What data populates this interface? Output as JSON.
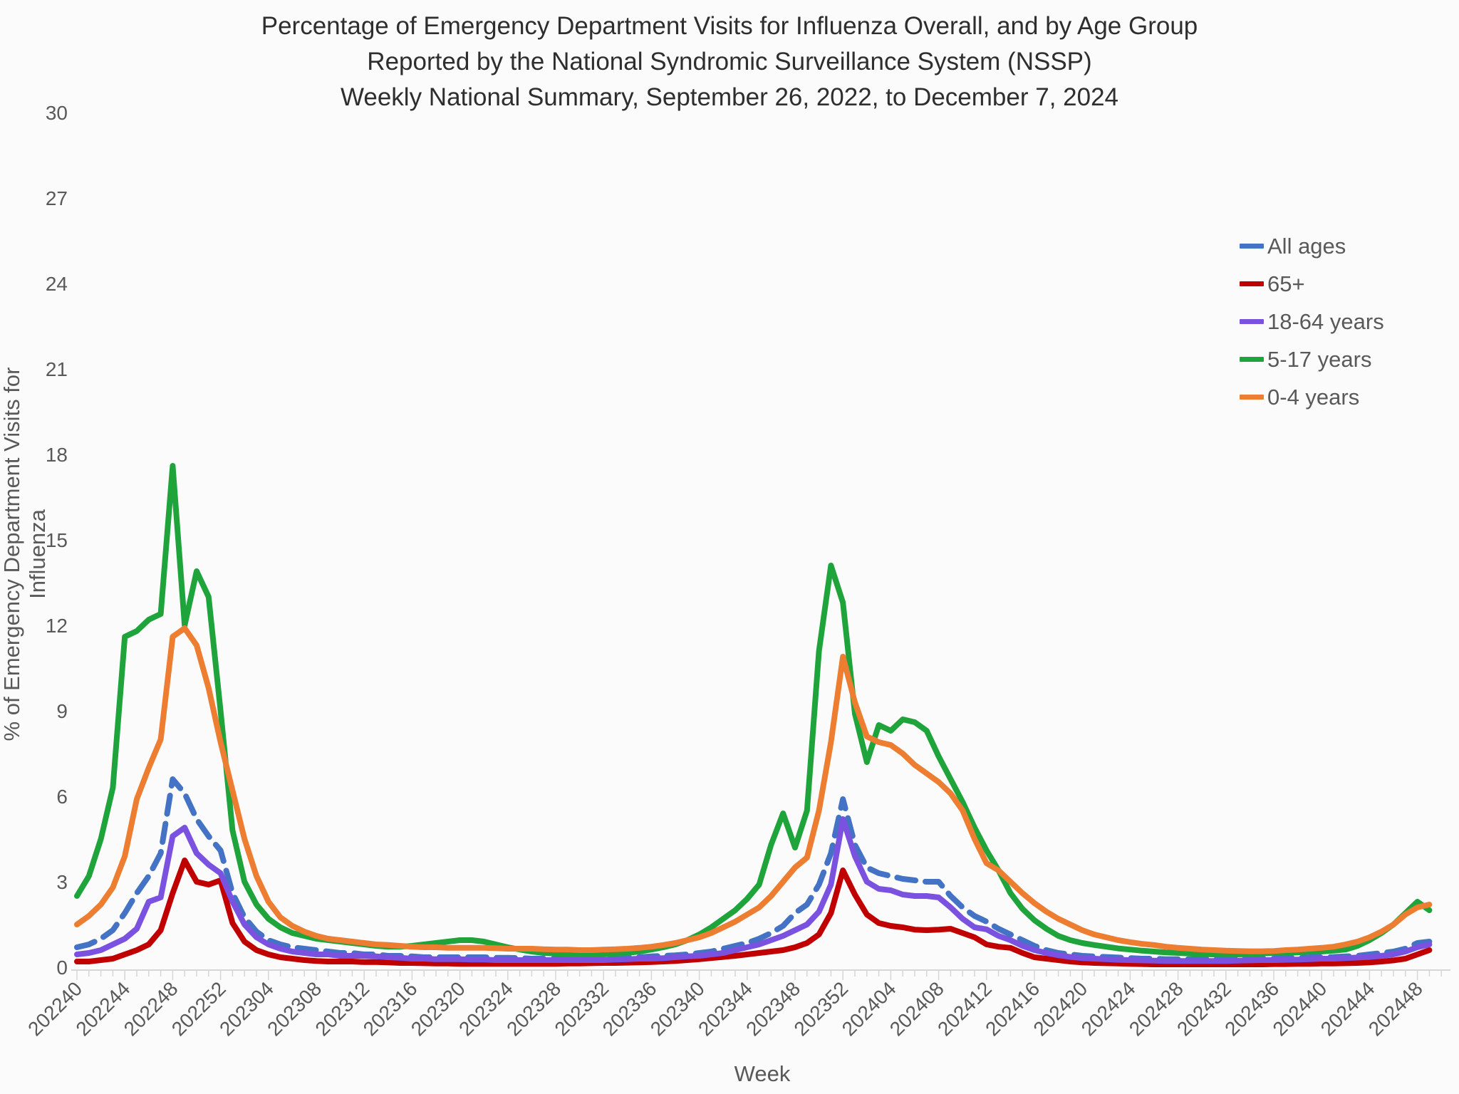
{
  "title": {
    "line1": "Percentage of Emergency Department Visits for Influenza Overall, and by Age Group",
    "line2": "Reported by the National Syndromic Surveillance System (NSSP)",
    "line3": "Weekly National Summary, September 26, 2022, to December 7, 2024"
  },
  "y_axis": {
    "label": "% of Emergency Department Visits for Influenza",
    "ticks": [
      0,
      3,
      6,
      9,
      12,
      15,
      18,
      21,
      24,
      27,
      30
    ],
    "min": 0,
    "max": 30
  },
  "x_axis": {
    "label": "Week",
    "tick_labels": [
      "202240",
      "202244",
      "202248",
      "202252",
      "202304",
      "202308",
      "202312",
      "202316",
      "202320",
      "202324",
      "202328",
      "202332",
      "202336",
      "202340",
      "202344",
      "202348",
      "202352",
      "202404",
      "202408",
      "202412",
      "202416",
      "202420",
      "202424",
      "202428",
      "202432",
      "202436",
      "202440",
      "202444",
      "202448"
    ]
  },
  "legend": {
    "position": "right",
    "entries": [
      "All ages",
      "65+",
      "18-64 years",
      "5-17 years",
      "0-4 years"
    ]
  },
  "colors": {
    "all_ages": "#4472C4",
    "65_plus": "#C00000",
    "18_64": "#7B52E0",
    "5_17": "#1FA43C",
    "0_4": "#ED7D31",
    "axis_text": "#595959",
    "tick_line": "#D6D6D6",
    "title_text": "#2E2E2E"
  },
  "chart_data": {
    "type": "line",
    "title": "Percentage of Emergency Department Visits for Influenza Overall, and by Age Group Reported by the National Syndromic Surveillance System (NSSP), Weekly National Summary, September 26, 2022, to December 7, 2024",
    "xlabel": "Week",
    "ylabel": "% of Emergency Department Visits for Influenza",
    "ylim": [
      0,
      30
    ],
    "grid": false,
    "legend_position": "right",
    "x": [
      202240,
      202241,
      202242,
      202243,
      202244,
      202245,
      202246,
      202247,
      202248,
      202249,
      202250,
      202251,
      202252,
      202301,
      202302,
      202303,
      202304,
      202305,
      202306,
      202307,
      202308,
      202309,
      202310,
      202311,
      202312,
      202313,
      202314,
      202315,
      202316,
      202317,
      202318,
      202319,
      202320,
      202321,
      202322,
      202323,
      202324,
      202325,
      202326,
      202327,
      202328,
      202329,
      202330,
      202331,
      202332,
      202333,
      202334,
      202335,
      202336,
      202337,
      202338,
      202339,
      202340,
      202341,
      202342,
      202343,
      202344,
      202345,
      202346,
      202347,
      202348,
      202349,
      202350,
      202351,
      202352,
      202401,
      202402,
      202403,
      202404,
      202405,
      202406,
      202407,
      202408,
      202409,
      202410,
      202411,
      202412,
      202413,
      202414,
      202415,
      202416,
      202417,
      202418,
      202419,
      202420,
      202421,
      202422,
      202423,
      202424,
      202425,
      202426,
      202427,
      202428,
      202429,
      202430,
      202431,
      202432,
      202433,
      202434,
      202435,
      202436,
      202437,
      202438,
      202439,
      202440,
      202441,
      202442,
      202443,
      202444,
      202445,
      202446,
      202447,
      202448,
      202449
    ],
    "series": [
      {
        "name": "All ages",
        "color": "#4472C4",
        "dashed": true,
        "values": [
          0.7,
          0.8,
          1.0,
          1.3,
          1.9,
          2.6,
          3.2,
          4.0,
          6.6,
          6.1,
          5.2,
          4.6,
          4.1,
          2.6,
          1.75,
          1.25,
          0.95,
          0.8,
          0.7,
          0.65,
          0.6,
          0.55,
          0.5,
          0.5,
          0.45,
          0.45,
          0.4,
          0.4,
          0.38,
          0.35,
          0.35,
          0.35,
          0.35,
          0.35,
          0.35,
          0.33,
          0.33,
          0.32,
          0.3,
          0.3,
          0.3,
          0.3,
          0.3,
          0.3,
          0.32,
          0.33,
          0.35,
          0.35,
          0.38,
          0.4,
          0.42,
          0.45,
          0.5,
          0.55,
          0.65,
          0.75,
          0.85,
          1.0,
          1.2,
          1.45,
          1.9,
          2.2,
          2.9,
          4.0,
          5.9,
          4.3,
          3.5,
          3.3,
          3.2,
          3.1,
          3.05,
          3.0,
          3.0,
          2.5,
          2.1,
          1.8,
          1.6,
          1.35,
          1.15,
          0.95,
          0.75,
          0.6,
          0.5,
          0.45,
          0.4,
          0.38,
          0.36,
          0.34,
          0.32,
          0.3,
          0.3,
          0.28,
          0.28,
          0.28,
          0.28,
          0.28,
          0.28,
          0.3,
          0.3,
          0.3,
          0.3,
          0.32,
          0.33,
          0.35,
          0.35,
          0.36,
          0.38,
          0.4,
          0.45,
          0.5,
          0.55,
          0.65,
          0.85,
          0.9
        ]
      },
      {
        "name": "65+",
        "color": "#C00000",
        "dashed": false,
        "values": [
          0.2,
          0.2,
          0.25,
          0.3,
          0.45,
          0.6,
          0.8,
          1.3,
          2.6,
          3.75,
          3.0,
          2.9,
          3.05,
          1.55,
          0.9,
          0.6,
          0.45,
          0.35,
          0.3,
          0.25,
          0.22,
          0.2,
          0.2,
          0.2,
          0.18,
          0.18,
          0.17,
          0.15,
          0.15,
          0.14,
          0.13,
          0.13,
          0.12,
          0.12,
          0.12,
          0.12,
          0.12,
          0.12,
          0.12,
          0.12,
          0.12,
          0.13,
          0.13,
          0.14,
          0.15,
          0.15,
          0.16,
          0.17,
          0.18,
          0.2,
          0.22,
          0.25,
          0.28,
          0.32,
          0.36,
          0.4,
          0.45,
          0.5,
          0.55,
          0.6,
          0.7,
          0.85,
          1.15,
          1.9,
          3.4,
          2.55,
          1.85,
          1.55,
          1.45,
          1.4,
          1.32,
          1.3,
          1.32,
          1.35,
          1.2,
          1.05,
          0.8,
          0.72,
          0.68,
          0.5,
          0.35,
          0.3,
          0.25,
          0.2,
          0.17,
          0.15,
          0.14,
          0.13,
          0.12,
          0.11,
          0.1,
          0.1,
          0.1,
          0.1,
          0.1,
          0.1,
          0.1,
          0.1,
          0.1,
          0.1,
          0.11,
          0.11,
          0.12,
          0.12,
          0.13,
          0.13,
          0.14,
          0.15,
          0.17,
          0.2,
          0.24,
          0.3,
          0.45,
          0.6
        ]
      },
      {
        "name": "18-64 years",
        "color": "#7B52E0",
        "dashed": false,
        "values": [
          0.45,
          0.5,
          0.6,
          0.8,
          1.0,
          1.35,
          2.3,
          2.45,
          4.6,
          4.9,
          4.0,
          3.6,
          3.3,
          2.3,
          1.5,
          1.05,
          0.8,
          0.65,
          0.55,
          0.5,
          0.45,
          0.45,
          0.4,
          0.4,
          0.4,
          0.38,
          0.35,
          0.33,
          0.3,
          0.3,
          0.28,
          0.28,
          0.28,
          0.27,
          0.27,
          0.25,
          0.25,
          0.25,
          0.25,
          0.25,
          0.25,
          0.25,
          0.25,
          0.25,
          0.25,
          0.27,
          0.28,
          0.3,
          0.3,
          0.32,
          0.35,
          0.38,
          0.4,
          0.45,
          0.5,
          0.6,
          0.7,
          0.8,
          0.95,
          1.1,
          1.3,
          1.5,
          1.95,
          2.9,
          5.2,
          3.9,
          3.0,
          2.75,
          2.7,
          2.55,
          2.5,
          2.5,
          2.45,
          2.1,
          1.7,
          1.4,
          1.33,
          1.1,
          0.95,
          0.75,
          0.6,
          0.5,
          0.42,
          0.36,
          0.32,
          0.3,
          0.28,
          0.26,
          0.25,
          0.24,
          0.23,
          0.22,
          0.22,
          0.22,
          0.22,
          0.22,
          0.22,
          0.23,
          0.24,
          0.25,
          0.25,
          0.26,
          0.27,
          0.28,
          0.3,
          0.3,
          0.32,
          0.34,
          0.36,
          0.4,
          0.45,
          0.55,
          0.7,
          0.8
        ]
      },
      {
        "name": "5-17 years",
        "color": "#1FA43C",
        "dashed": false,
        "values": [
          2.5,
          3.2,
          4.5,
          6.3,
          11.6,
          11.8,
          12.2,
          12.4,
          17.6,
          12.0,
          13.9,
          13.0,
          9.0,
          4.8,
          3.0,
          2.2,
          1.7,
          1.4,
          1.2,
          1.1,
          1.0,
          0.95,
          0.9,
          0.85,
          0.8,
          0.75,
          0.72,
          0.72,
          0.75,
          0.8,
          0.85,
          0.9,
          0.95,
          0.95,
          0.9,
          0.8,
          0.7,
          0.62,
          0.55,
          0.5,
          0.48,
          0.45,
          0.45,
          0.45,
          0.45,
          0.48,
          0.5,
          0.55,
          0.62,
          0.7,
          0.8,
          0.95,
          1.15,
          1.4,
          1.7,
          2.0,
          2.4,
          2.9,
          4.3,
          5.4,
          4.2,
          5.5,
          11.1,
          14.1,
          12.8,
          8.9,
          7.2,
          8.5,
          8.3,
          8.7,
          8.6,
          8.3,
          7.4,
          6.6,
          5.8,
          4.9,
          4.1,
          3.4,
          2.6,
          2.05,
          1.65,
          1.35,
          1.1,
          0.95,
          0.85,
          0.78,
          0.72,
          0.66,
          0.62,
          0.58,
          0.55,
          0.52,
          0.5,
          0.48,
          0.46,
          0.45,
          0.45,
          0.45,
          0.46,
          0.48,
          0.5,
          0.5,
          0.52,
          0.55,
          0.55,
          0.58,
          0.62,
          0.75,
          0.95,
          1.2,
          1.5,
          1.9,
          2.3,
          2.0
        ]
      },
      {
        "name": "0-4 years",
        "color": "#ED7D31",
        "dashed": false,
        "values": [
          1.5,
          1.8,
          2.2,
          2.8,
          3.9,
          5.9,
          7.0,
          8.0,
          11.6,
          11.9,
          11.3,
          9.8,
          7.9,
          6.2,
          4.5,
          3.2,
          2.3,
          1.75,
          1.45,
          1.25,
          1.1,
          1.0,
          0.95,
          0.9,
          0.85,
          0.8,
          0.78,
          0.75,
          0.72,
          0.7,
          0.7,
          0.68,
          0.68,
          0.68,
          0.68,
          0.67,
          0.65,
          0.65,
          0.65,
          0.63,
          0.62,
          0.62,
          0.6,
          0.6,
          0.62,
          0.63,
          0.65,
          0.68,
          0.72,
          0.78,
          0.85,
          0.95,
          1.05,
          1.2,
          1.4,
          1.6,
          1.85,
          2.1,
          2.5,
          3.0,
          3.5,
          3.85,
          5.5,
          7.9,
          10.9,
          9.3,
          8.1,
          7.9,
          7.8,
          7.5,
          7.1,
          6.8,
          6.5,
          6.1,
          5.5,
          4.5,
          3.65,
          3.4,
          3.0,
          2.6,
          2.25,
          1.95,
          1.7,
          1.5,
          1.3,
          1.15,
          1.05,
          0.95,
          0.88,
          0.82,
          0.78,
          0.72,
          0.68,
          0.65,
          0.62,
          0.6,
          0.58,
          0.57,
          0.56,
          0.56,
          0.57,
          0.6,
          0.62,
          0.65,
          0.68,
          0.72,
          0.8,
          0.9,
          1.05,
          1.25,
          1.5,
          1.85,
          2.1,
          2.2
        ]
      }
    ]
  }
}
